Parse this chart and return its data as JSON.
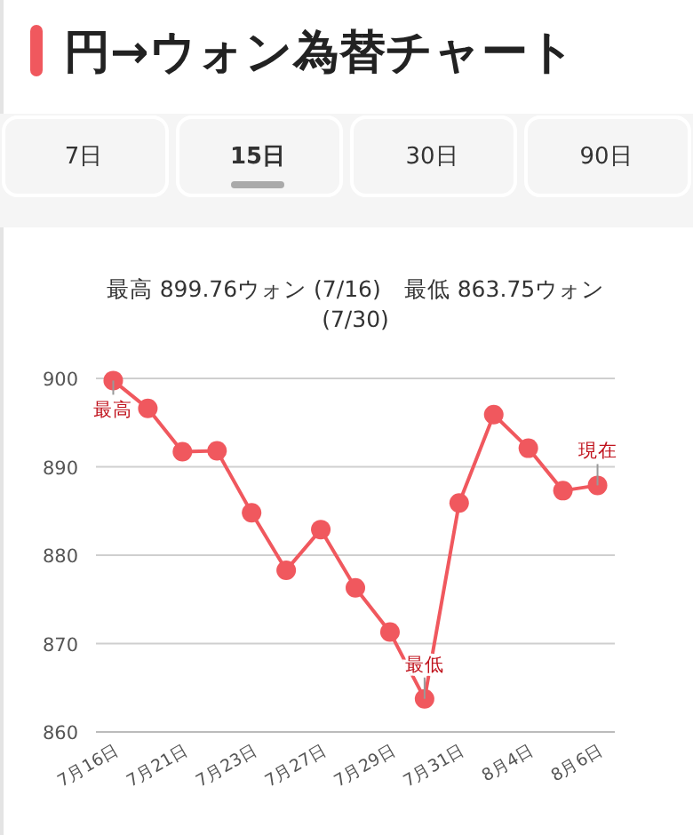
{
  "chart_data": {
    "type": "line",
    "title": "円→ウォン為替チャート",
    "subtitle": "最高 899.76ウォン (7/16)　最低 863.75ウォン (7/30)",
    "categories": [
      "7月16日",
      null,
      "7月21日",
      null,
      "7月23日",
      null,
      "7月27日",
      null,
      "7月29日",
      null,
      "7月31日",
      null,
      "8月4日",
      null,
      "8月6日"
    ],
    "series": [
      {
        "color": "#f0585e",
        "values": [
          899.76,
          896.6,
          891.7,
          891.8,
          884.8,
          878.3,
          882.9,
          876.3,
          871.3,
          863.75,
          885.9,
          895.9,
          892.1,
          887.3,
          887.9
        ]
      }
    ],
    "ylim": [
      860,
      900
    ],
    "yticks": [
      860,
      870,
      880,
      890,
      900
    ],
    "grid": "y",
    "marker": "circle",
    "annotations": [
      "7日",
      "15日",
      "30日",
      "90日",
      {
        "text": "最高",
        "x": "7月16日",
        "y": 899.76
      },
      {
        "text": "最低",
        "y": 863.75
      },
      {
        "text": "現在",
        "x": "8月6日",
        "y": 887.9
      }
    ]
  }
}
